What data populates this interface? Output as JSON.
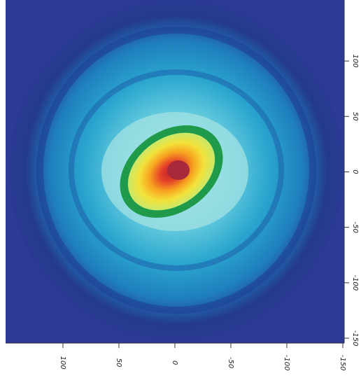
{
  "chart_data": {
    "type": "image",
    "xlim": [
      150,
      -150
    ],
    "xticks": [
      100,
      50,
      0,
      -50,
      -100,
      -150
    ],
    "ylim": [
      -150,
      155
    ],
    "yticks": [
      100,
      50,
      0,
      -50,
      -100,
      -150
    ]
  }
}
